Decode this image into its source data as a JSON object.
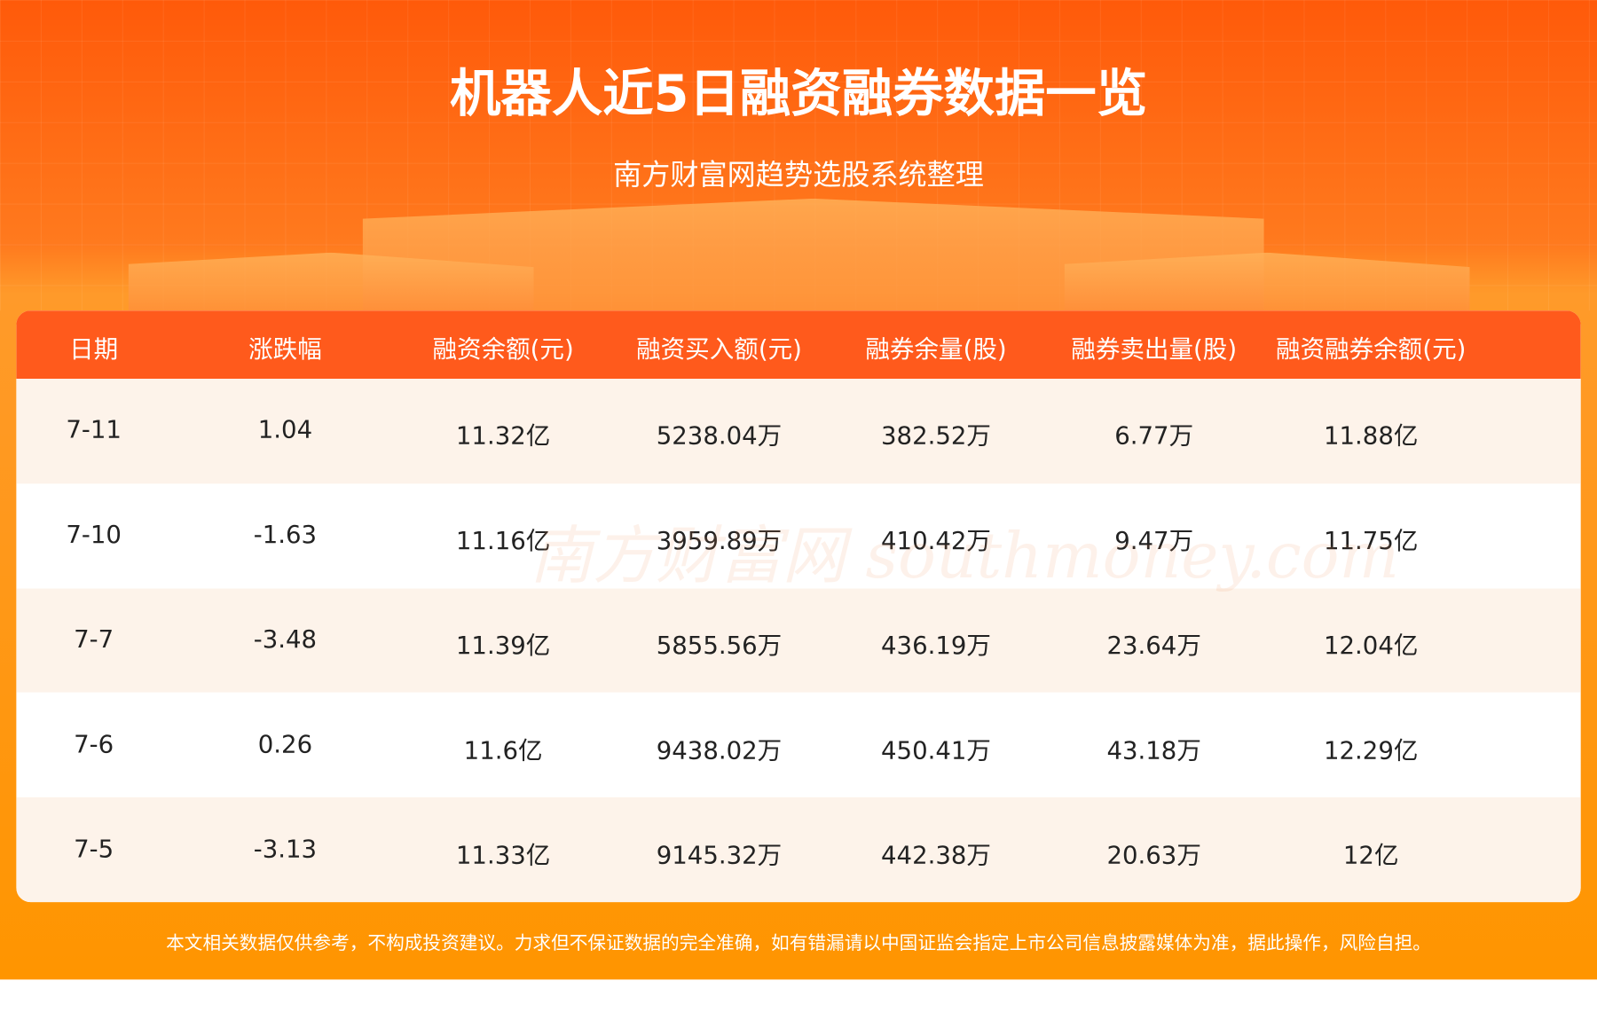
{
  "header": {
    "title": "机器人近5日融资融券数据一览",
    "subtitle": "南方财富网趋势选股系统整理"
  },
  "table": {
    "columns": [
      "日期",
      "涨跌幅",
      "融资余额(元)",
      "融资买入额(元)",
      "融券余量(股)",
      "融券卖出量(股)",
      "融资融券余额(元)"
    ],
    "rows": [
      [
        "7-11",
        "1.04",
        "11.32亿",
        "5238.04万",
        "382.52万",
        "6.77万",
        "11.88亿"
      ],
      [
        "7-10",
        "-1.63",
        "11.16亿",
        "3959.89万",
        "410.42万",
        "9.47万",
        "11.75亿"
      ],
      [
        "7-7",
        "-3.48",
        "11.39亿",
        "5855.56万",
        "436.19万",
        "23.64万",
        "12.04亿"
      ],
      [
        "7-6",
        "0.26",
        "11.6亿",
        "9438.02万",
        "450.41万",
        "43.18万",
        "12.29亿"
      ],
      [
        "7-5",
        "-3.13",
        "11.33亿",
        "9145.32万",
        "442.38万",
        "20.63万",
        "12亿"
      ]
    ]
  },
  "watermark": "南方财富网 southmoney.com",
  "footer": {
    "disclaimer": "本文相关数据仅供参考，不构成投资建议。力求但不保证数据的完全准确，如有错漏请以中国证监会指定上市公司信息披露媒体为准，据此操作，风险自担。"
  },
  "colors": {
    "header_row": "#ff5a1c",
    "row_alt": "#fdf3ea",
    "footer_bg": "#ff9500"
  }
}
